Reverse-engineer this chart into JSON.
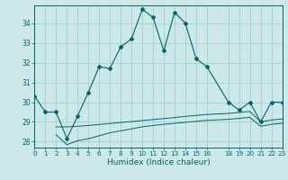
{
  "xlabel": "Humidex (Indice chaleur)",
  "background_color": "#cce8e8",
  "grid_color": "#99cccc",
  "line_color": "#006666",
  "xlim": [
    0,
    23
  ],
  "ylim": [
    27.7,
    34.9
  ],
  "yticks": [
    28,
    29,
    30,
    31,
    32,
    33,
    34
  ],
  "xticks": [
    0,
    1,
    2,
    3,
    4,
    5,
    6,
    7,
    8,
    9,
    10,
    11,
    12,
    13,
    14,
    15,
    16,
    18,
    19,
    20,
    21,
    22,
    23
  ],
  "xtick_labels": [
    "0",
    "1",
    "2",
    "3",
    "4",
    "5",
    "6",
    "7",
    "8",
    "9",
    "10",
    "11",
    "12",
    "13",
    "14",
    "15",
    "16",
    "18",
    "19",
    "20",
    "21",
    "22",
    "23"
  ],
  "x_main": [
    0,
    1,
    2,
    3,
    4,
    5,
    6,
    7,
    8,
    9,
    10,
    11,
    12,
    13,
    14,
    15,
    16,
    18,
    19,
    20,
    21,
    22,
    23
  ],
  "y_main": [
    30.3,
    29.5,
    29.5,
    28.15,
    29.3,
    30.5,
    31.8,
    31.7,
    32.8,
    33.2,
    34.7,
    34.3,
    32.6,
    34.55,
    34.0,
    32.2,
    31.8,
    30.0,
    29.6,
    30.0,
    29.0,
    30.0,
    30.0
  ],
  "x_flat1": [
    2,
    3,
    4,
    5,
    6,
    7,
    8,
    9,
    10,
    11,
    12,
    13,
    14,
    15,
    16,
    18,
    19,
    20,
    21,
    22,
    23
  ],
  "y_flat1": [
    28.75,
    28.75,
    28.78,
    28.82,
    28.87,
    28.92,
    28.97,
    29.02,
    29.07,
    29.12,
    29.17,
    29.22,
    29.28,
    29.33,
    29.38,
    29.43,
    29.48,
    29.53,
    29.0,
    29.1,
    29.15
  ],
  "x_flat2": [
    2,
    3,
    4,
    5,
    6,
    7,
    8,
    9,
    10,
    11,
    12,
    13,
    14,
    15,
    16,
    18,
    19,
    20,
    21,
    22,
    23
  ],
  "y_flat2": [
    28.35,
    27.85,
    28.05,
    28.15,
    28.3,
    28.45,
    28.55,
    28.65,
    28.75,
    28.82,
    28.88,
    28.93,
    28.98,
    29.03,
    29.08,
    29.13,
    29.18,
    29.23,
    28.78,
    28.88,
    28.93
  ]
}
